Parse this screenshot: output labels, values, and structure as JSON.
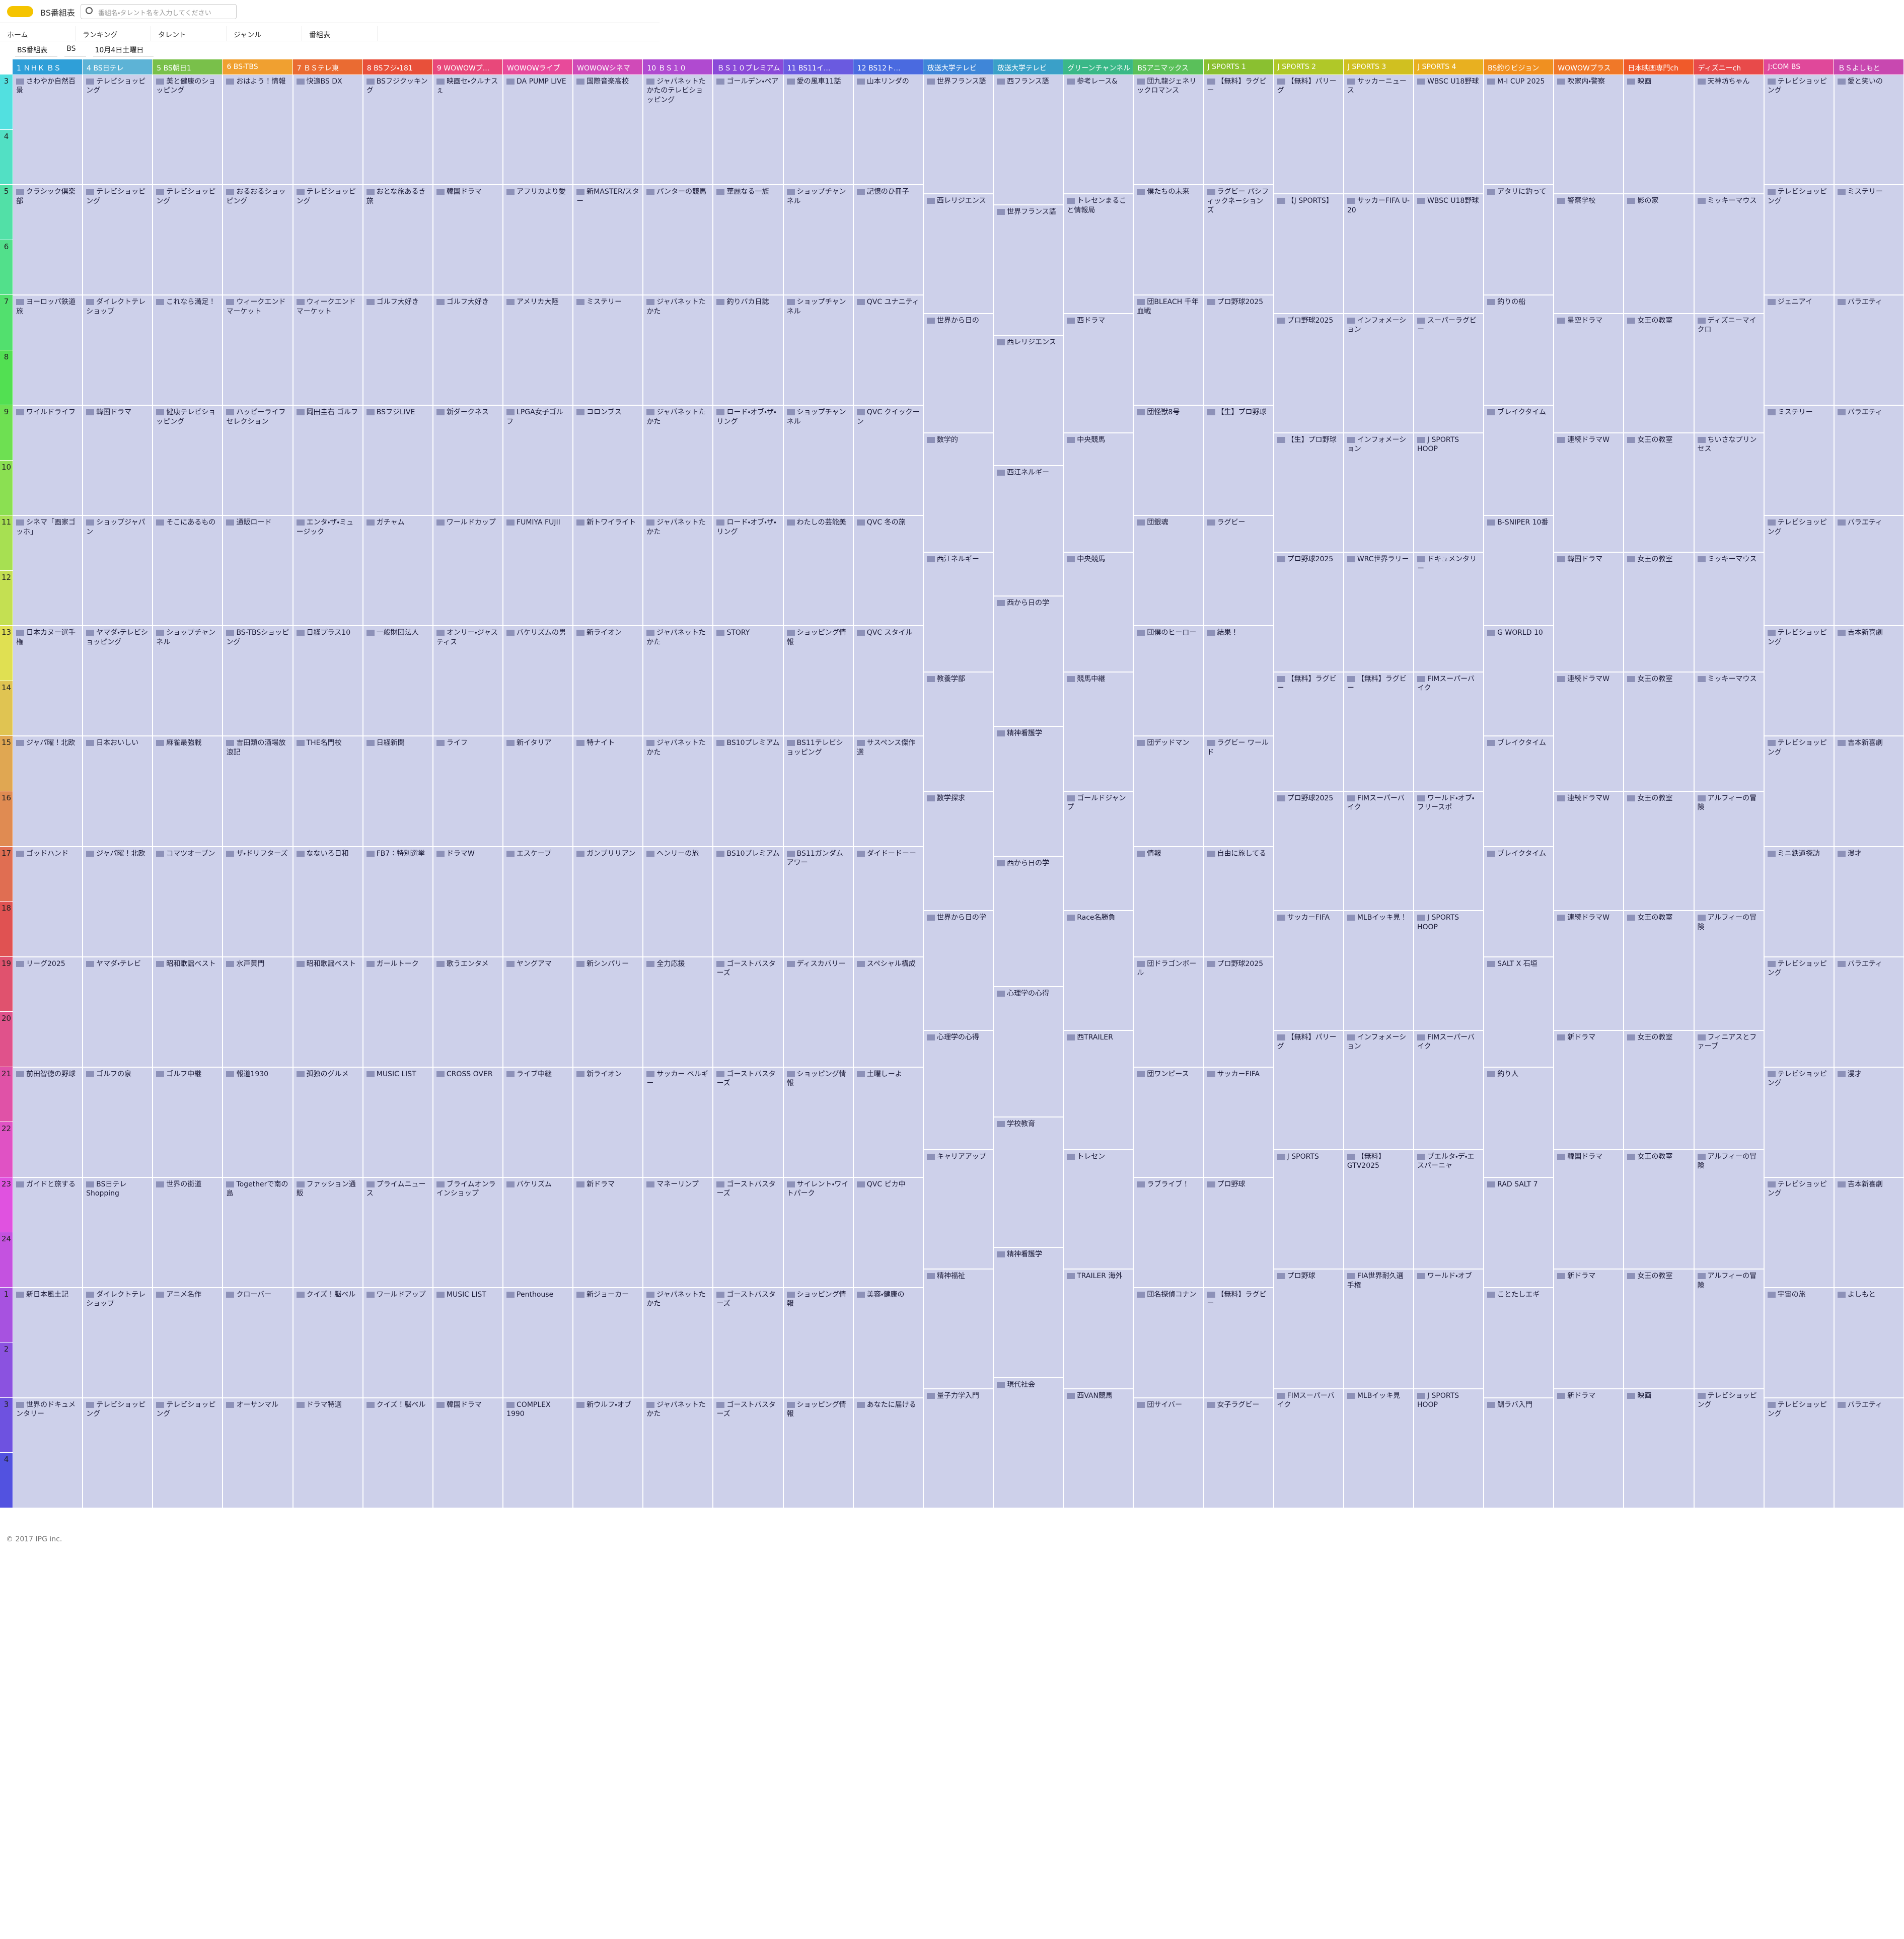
{
  "page_title": "BS番組表",
  "search_placeholder": "番組名・タレント名を入力してください",
  "nav": [
    "ホーム",
    "ランキング",
    "タレント",
    "ジャンル",
    "番組表"
  ],
  "filters": [
    "BS番組表",
    "BS",
    "10月4日土曜日"
  ],
  "hours": [
    3,
    4,
    5,
    6,
    7,
    8,
    9,
    10,
    11,
    12,
    13,
    14,
    15,
    16,
    17,
    18,
    19,
    20,
    21,
    22,
    23,
    24,
    1,
    2,
    3,
    4
  ],
  "channels": [
    {
      "name": "1 ＮＨＫ ＢＳ",
      "color": "#2f9fd8",
      "programs": [
        "さわやか自然百景",
        "クラシック倶楽部",
        "ヨーロッパ鉄道旅",
        "ワイルドライフ",
        "シネマ「画家ゴッホ」",
        "日本カヌー選手権",
        "ジャパ曜！北欧",
        "ゴッドハンド",
        "リーグ2025",
        "前田智徳の野球",
        "ガイドと旅する",
        "新日本風土記",
        "世界のドキュメンタリー"
      ]
    },
    {
      "name": "4 BS日テレ",
      "color": "#5db3d6",
      "programs": [
        "テレビショッピング",
        "テレビショッピング",
        "ダイレクトテレショップ",
        "韓国ドラマ",
        "ショップジャパン",
        "ヤマダ・テレビショッピング",
        "日本おいしい",
        "ジャパ曜！北欧",
        "ヤマダ・テレビ",
        "ゴルフの泉",
        "BS日テレ Shopping",
        "ダイレクトテレショップ",
        "テレビショッピング"
      ]
    },
    {
      "name": "5 BS朝日1",
      "color": "#79c04a",
      "programs": [
        "美と健康のショッピング",
        "テレビショッピング",
        "これなら満足！",
        "健康テレビショッピング",
        "そこにあるもの",
        "ショップチャンネル",
        "麻雀最強戦",
        "コマツオーブン",
        "昭和歌謡ベスト",
        "ゴルフ中継",
        "世界の街道",
        "アニメ名作",
        "テレビショッピング"
      ]
    },
    {
      "name": "6 BS-TBS",
      "color": "#f0a030",
      "programs": [
        "おはよう！情報",
        "おるおるショッピング",
        "ウィークエンドマーケット",
        "ハッピーライフセレクション",
        "通販ロード",
        "BS‐TBSショッピング",
        "吉田類の酒場放浪記",
        "ザ・ドリフターズ",
        "水戸黄門",
        "報道1930",
        "Togetherで南の島",
        "クローバー",
        "オーサンマル"
      ]
    },
    {
      "name": "7 ＢＳテレ東",
      "color": "#ea6b32",
      "programs": [
        "快適BS DX",
        "テレビショッピング",
        "ウィークエンドマーケット",
        "岡田圭右 ゴルフ",
        "エンタ・ザ・ミュージック",
        "日経プラス10",
        "THE名門校",
        "なないろ日和",
        "昭和歌謡ベスト",
        "孤独のグルメ",
        "ファッション通販",
        "クイズ！脳ベル",
        "ドラマ特選"
      ]
    },
    {
      "name": "8 BSフジ・181",
      "color": "#e8503a",
      "programs": [
        "BSフジクッキング",
        "おとな旅あるき旅",
        "ゴルフ大好き",
        "BSフジLIVE",
        "ガチャム",
        "一般財団法人",
        "日経新聞",
        "FB7：特別選挙",
        "ガールトーク",
        "MUSIC LIST",
        "プライムニュース",
        "ワールドアップ",
        "クイズ！脳ベル"
      ]
    },
    {
      "name": "9 WOWOWプ...",
      "color": "#e8487a",
      "programs": [
        "映画セ・クルナスぇ",
        "韓国ドラマ",
        "ゴルフ大好き",
        "新ダークネス",
        "ワールドカップ",
        "オンリー・ジャスティス",
        "ライフ",
        "ドラマW",
        "歌うエンタメ",
        "CROSS OVER",
        "ブライムオンラインショップ",
        "MUSIC LIST",
        "韓国ドラマ"
      ]
    },
    {
      "name": "WOWOWライブ",
      "color": "#e84a9a",
      "programs": [
        "DA PUMP LIVE",
        "アフリカより愛",
        "アメリカ大陸",
        "LPGA女子ゴルフ",
        "FUMIYA FUJII",
        "バケリズムの男",
        "新イタリア",
        "エスケープ",
        "ヤングアマ",
        "ライブ中継",
        "バケリズム",
        "Penthouse",
        "COMPLEX 1990"
      ]
    },
    {
      "name": "WOWOWシネマ",
      "color": "#d04ab8",
      "programs": [
        "国際音楽高校",
        "新MASTER/スター",
        "ミステリー",
        "コロンブス",
        "新トワイライト",
        "新ライオン",
        "特ナイト",
        "ガンブリリアン",
        "新シンパリー",
        "新ライオン",
        "新ドラマ",
        "新ジョーカー",
        "新ウルフ・オブ"
      ]
    },
    {
      "name": "10 ＢＳ１０",
      "color": "#b04ad0",
      "programs": [
        "ジャパネットたかたのテレビショッピング",
        "パンターの競馬",
        "ジャパネットたかた",
        "ジャパネットたかた",
        "ジャパネットたかた",
        "ジャパネットたかた",
        "ジャパネットたかた",
        "ヘンリーの旅",
        "全力応援",
        "サッカー ベルギー",
        "マネーリンプ",
        "ジャパネットたかた",
        "ジャパネットたかた"
      ]
    },
    {
      "name": "ＢＳ１０プレミアム",
      "color": "#8a4ad8",
      "programs": [
        "ゴールデン・ペア",
        "華麗なる一族",
        "釣りバカ日誌",
        "ロード・オブ・ザ・リング",
        "ロード・オブ・ザ・リング",
        "STORY",
        "BS10プレミアム",
        "BS10プレミアム",
        "ゴーストバスターズ",
        "ゴーストバスターズ",
        "ゴーストバスターズ",
        "ゴーストバスターズ",
        "ゴーストバスターズ"
      ]
    },
    {
      "name": "11 BS11イ...",
      "color": "#6a5ae0",
      "programs": [
        "愛の風車11話",
        "ショップチャンネル",
        "ショップチャンネル",
        "ショップチャンネル",
        "わたしの芸能美",
        "ショッピング情報",
        "BS11テレビショッピング",
        "BS11ガンダムアワー",
        "ディスカバリー",
        "ショッピング情報",
        "サイレント・ワイトパーク",
        "ショッピング情報",
        "ショッピング情報"
      ]
    },
    {
      "name": "12 BS12ト...",
      "color": "#4a6ae0",
      "programs": [
        "山本リンダの",
        "記憶のひ冊子",
        "QVC ユナニティ",
        "QVC クイックーン",
        "QVC 冬の旅",
        "QVC スタイル",
        "サスペンス傑作選",
        "ダイドードーー",
        "スペシャル構成",
        "土曜しーよ",
        "QVC ピカ中",
        "美容・健康の",
        "あなたに届ける"
      ]
    },
    {
      "name": "放送大学テレビ",
      "color": "#3f86d8",
      "programs": [
        "世界フランス語",
        "西レリジエンス",
        "世界から日の",
        "数学的",
        "西江ネルギー",
        "教養学部",
        "数学探求",
        "世界から日の学",
        "心理学の心得",
        "キャリアアップ",
        "精神福祉",
        "量子力学入門"
      ]
    },
    {
      "name": "放送大学テレビ",
      "color": "#3aa0c8",
      "programs": [
        "西フランス語",
        "世界フランス語",
        "西レリジエンス",
        "西江ネルギー",
        "西から日の学",
        "精神看護学",
        "西から日の学",
        "心理学の心得",
        "学校教育",
        "精神看護学",
        "現代社会"
      ]
    },
    {
      "name": "グリーンチャンネル",
      "color": "#3ab888",
      "programs": [
        "参考レース&",
        "トレセンまること情報局",
        "西ドラマ",
        "中央競馬",
        "中央競馬",
        "競馬中継",
        "ゴールドジャンプ",
        "Race名勝負",
        "西TRAILER",
        "トレセン",
        "TRAILER 海外",
        "西VAN競馬"
      ]
    },
    {
      "name": "BSアニマックス",
      "color": "#5ac05a",
      "programs": [
        "団九龍ジェネリックロマンス",
        "僕たちの未来",
        "団BLEACH 千年血戦",
        "団怪獣8号",
        "団銀魂",
        "団僕のヒーロー",
        "団デッドマン",
        "情報",
        "団ドラゴンボール",
        "団ワンピース",
        "ラブライブ！",
        "団名探偵コナン",
        "団サイバー"
      ]
    },
    {
      "name": "J SPORTS 1",
      "color": "#8ac030",
      "programs": [
        "【無料】ラグビー",
        "ラグビー パシフィックネーションズ",
        "プロ野球2025",
        "【生】プロ野球",
        "ラグビー",
        "結果！",
        "ラグビー ワールド",
        "自由に旅してる",
        "プロ野球2025",
        "サッカーFIFA",
        "プロ野球",
        "【無料】ラグビー",
        "女子ラグビー"
      ]
    },
    {
      "name": "J SPORTS 2",
      "color": "#b0c828",
      "programs": [
        "【無料】パリーグ",
        "【J SPORTS】",
        "プロ野球2025",
        "【生】プロ野球",
        "プロ野球2025",
        "【無料】ラグビー",
        "プロ野球2025",
        "サッカーFIFA",
        "【無料】パリーグ",
        "J SPORTS",
        "プロ野球",
        "FIMスーパーバイク"
      ]
    },
    {
      "name": "J SPORTS 3",
      "color": "#d0c020",
      "programs": [
        "サッカーニュース",
        "サッカーFIFA U-20",
        "インフォメーション",
        "インフォメーション",
        "WRC世界ラリー",
        "【無料】ラグビー",
        "FIMスーパーバイク",
        "MLBイッキ見！",
        "インフォメーション",
        "【無料】GTV2025",
        "FIA世界耐久選手権",
        "MLBイッキ見"
      ]
    },
    {
      "name": "J SPORTS 4",
      "color": "#e8b020",
      "programs": [
        "WBSC U18野球",
        "WBSC U18野球",
        "スーパーラグビー",
        "J SPORTS HOOP",
        "ドキュメンタリー",
        "FIMスーパーバイク",
        "ワールド・オブ・フリースポ",
        "J SPORTS HOOP",
        "FIMスーパーバイク",
        "ブエルタ・デ・エスパーニャ",
        "ワールド・オブ",
        "J SPORTS HOOP"
      ]
    },
    {
      "name": "BS釣りビジョン",
      "color": "#f09020",
      "programs": [
        "M-I CUP 2025",
        "アタリに釣って",
        "釣りの船",
        "ブレイクタイム",
        "B-SNIPER 10番",
        "G WORLD 10",
        "ブレイクタイム",
        "ブレイクタイム",
        "SALT X 石垣",
        "釣り人",
        "RAD SALT 7",
        "ことたしエギ",
        "鯛ラバ入門"
      ]
    },
    {
      "name": "WOWOWプラス",
      "color": "#f07828",
      "programs": [
        "吹家内・警察",
        "警察学校",
        "星空ドラマ",
        "連続ドラマW",
        "韓国ドラマ",
        "連続ドラマW",
        "連続ドラマW",
        "連続ドラマW",
        "新ドラマ",
        "韓国ドラマ",
        "新ドラマ",
        "新ドラマ"
      ]
    },
    {
      "name": "日本映画専門ch",
      "color": "#f05a2a",
      "programs": [
        "映画",
        "影の家",
        "女王の教室",
        "女王の教室",
        "女王の教室",
        "女王の教室",
        "女王の教室",
        "女王の教室",
        "女王の教室",
        "女王の教室",
        "女王の教室",
        "映画"
      ]
    },
    {
      "name": "ディズニーch",
      "color": "#e84a4a",
      "programs": [
        "天神坊ちゃん",
        "ミッキーマウス",
        "ディズニーマイクロ",
        "ちいさなプリンセス",
        "ミッキーマウス",
        "ミッキーマウス",
        "アルフィーの冒険",
        "アルフィーの冒険",
        "フィニアスとファーブ",
        "アルフィーの冒険",
        "アルフィーの冒険",
        "テレビショッピング"
      ]
    },
    {
      "name": "J:COM BS",
      "color": "#e0489a",
      "programs": [
        "テレビショッピング",
        "テレビショッピング",
        "ジェニアイ",
        "ミステリー",
        "テレビショッピング",
        "テレビショッピング",
        "テレビショッピング",
        "ミニ鉄道探訪",
        "テレビショッピング",
        "テレビショッピング",
        "テレビショッピング",
        "宇宙の旅",
        "テレビショッピング"
      ]
    },
    {
      "name": "ＢＳよしもと",
      "color": "#c848b0",
      "programs": [
        "愛と笑いの",
        "ミステリー",
        "バラエティ",
        "バラエティ",
        "バラエティ",
        "吉本新喜劇",
        "吉本新喜劇",
        "漫才",
        "バラエティ",
        "漫才",
        "吉本新喜劇",
        "よしもと",
        "バラエティ"
      ]
    }
  ],
  "footer": "© 2017 IPG inc."
}
